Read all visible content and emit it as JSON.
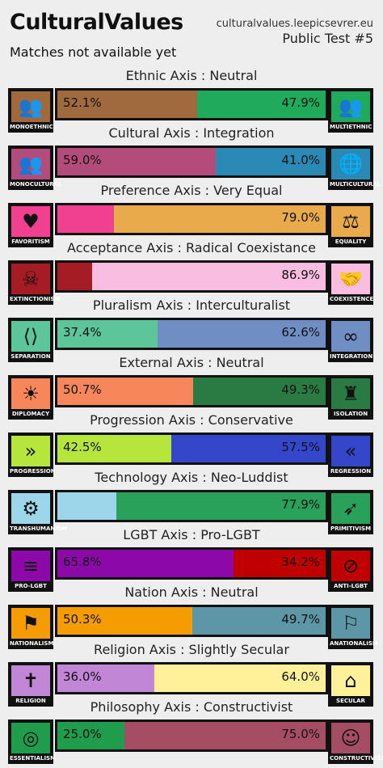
{
  "header": {
    "title": "CulturalValues",
    "subtitle": "Matches not available yet",
    "site": "culturalvalues.leepicsevrer.eu",
    "test": "Public Test #5"
  },
  "axes": [
    {
      "title": "Ethnic Axis : Neutral",
      "left_label": "MONOETHNIC",
      "right_label": "MULTIETHNIC",
      "left_pct": "52.1%",
      "right_pct": "47.9%",
      "left_value": 52.1,
      "left_color": "#a0693e",
      "right_color": "#1faa5c",
      "left_icon_bg": "#a0693e",
      "right_icon_bg": "#1faa5c",
      "left_icon": "group-icon",
      "right_icon": "diverse-group-icon"
    },
    {
      "title": "Cultural Axis : Integration",
      "left_label": "MONOCULTURAL",
      "right_label": "MULTICULTURAL",
      "left_pct": "59.0%",
      "right_pct": "41.0%",
      "left_value": 59.0,
      "left_color": "#b44c7b",
      "right_color": "#2b89b5",
      "left_icon_bg": "#b44c7b",
      "right_icon_bg": "#2b89b5",
      "left_icon": "crowd-icon",
      "right_icon": "globe-crowd-icon"
    },
    {
      "title": "Preference Axis : Very Equal",
      "left_label": "FAVORITISM",
      "right_label": "EQUALITY",
      "left_pct": "",
      "right_pct": "79.0%",
      "left_value": 21.0,
      "left_color": "#f0408f",
      "right_color": "#e8aa4a",
      "left_icon_bg": "#f0408f",
      "right_icon_bg": "#e8aa4a",
      "left_icon": "heart-icon",
      "right_icon": "equal-people-icon"
    },
    {
      "title": "Acceptance Axis : Radical Coexistance",
      "left_label": "EXTINCTIONISM",
      "right_label": "COEXISTENCE",
      "left_pct": "",
      "right_pct": "86.9%",
      "left_value": 13.1,
      "left_color": "#a51c24",
      "right_color": "#f8bde0",
      "left_icon_bg": "#a51c24",
      "right_icon_bg": "#f8bde0",
      "left_icon": "skull-icon",
      "right_icon": "handshake-icon"
    },
    {
      "title": "Pluralism Axis : Interculturalist",
      "left_label": "SEPARATION",
      "right_label": "INTEGRATION",
      "left_pct": "37.4%",
      "right_pct": "62.6%",
      "left_value": 37.4,
      "left_color": "#5cc59a",
      "right_color": "#6f8fc4",
      "left_icon_bg": "#5cc59a",
      "right_icon_bg": "#6f8fc4",
      "left_icon": "separated-people-icon",
      "right_icon": "joined-people-icon"
    },
    {
      "title": "External Axis : Neutral",
      "left_label": "DIPLOMACY",
      "right_label": "ISOLATION",
      "left_pct": "50.7%",
      "right_pct": "49.3%",
      "left_value": 50.7,
      "left_color": "#f7875b",
      "right_color": "#2a7b43",
      "left_icon_bg": "#f7875b",
      "right_icon_bg": "#2a7b43",
      "left_icon": "dove-circle-icon",
      "right_icon": "castle-icon"
    },
    {
      "title": "Progression Axis : Conservative",
      "left_label": "PROGRESSION",
      "right_label": "REGRESSION",
      "left_pct": "42.5%",
      "right_pct": "57.5%",
      "left_value": 42.5,
      "left_color": "#b6e63c",
      "right_color": "#3446c9",
      "left_icon_bg": "#b6e63c",
      "right_icon_bg": "#3446c9",
      "left_icon": "chevrons-right-icon",
      "right_icon": "chevrons-left-icon"
    },
    {
      "title": "Technology Axis : Neo-Luddist",
      "left_label": "TRANSHUMANISM",
      "right_label": "PRIMITIVISM",
      "left_pct": "",
      "right_pct": "77.9%",
      "left_value": 22.1,
      "left_color": "#9dd6ea",
      "right_color": "#2aa15a",
      "left_icon_bg": "#9dd6ea",
      "right_icon_bg": "#2aa15a",
      "left_icon": "robot-arm-icon",
      "right_icon": "spear-icon"
    },
    {
      "title": "LGBT Axis : Pro-LGBT",
      "left_label": "PRO-LGBT",
      "right_label": "ANTI-LGBT",
      "left_pct": "65.8%",
      "right_pct": "34.2%",
      "left_value": 65.8,
      "left_color": "#8d08a9",
      "right_color": "#c00000",
      "left_icon_bg": "#8d08a9",
      "right_icon_bg": "#c00000",
      "left_icon": "striped-flag-icon",
      "right_icon": "crossed-flag-icon"
    },
    {
      "title": "Nation Axis : Neutral",
      "left_label": "NATIONALISM",
      "right_label": "ANATIONALISM",
      "left_pct": "50.3%",
      "right_pct": "49.7%",
      "left_value": 50.3,
      "left_color": "#f59c00",
      "right_color": "#5c96a7",
      "left_icon_bg": "#f59c00",
      "right_icon_bg": "#5c96a7",
      "left_icon": "flag-icon",
      "right_icon": "wave-flag-icon"
    },
    {
      "title": "Religion Axis : Slightly Secular",
      "left_label": "RELIGION",
      "right_label": "SECULAR",
      "left_pct": "36.0%",
      "right_pct": "64.0%",
      "left_value": 36.0,
      "left_color": "#c186d6",
      "right_color": "#fff09a",
      "left_icon_bg": "#c186d6",
      "right_icon_bg": "#fff09a",
      "left_icon": "religious-symbols-icon",
      "right_icon": "government-building-icon"
    },
    {
      "title": "Philosophy Axis : Constructivist",
      "left_label": "ESSENTIALISM",
      "right_label": "CONSTRUCTIVISM",
      "left_pct": "25.0%",
      "right_pct": "75.0%",
      "left_value": 25.0,
      "left_color": "#1f9c4c",
      "right_color": "#a54e63",
      "left_icon_bg": "#1f9c4c",
      "right_icon_bg": "#a54e63",
      "left_icon": "globe-icon",
      "right_icon": "family-icon"
    }
  ]
}
